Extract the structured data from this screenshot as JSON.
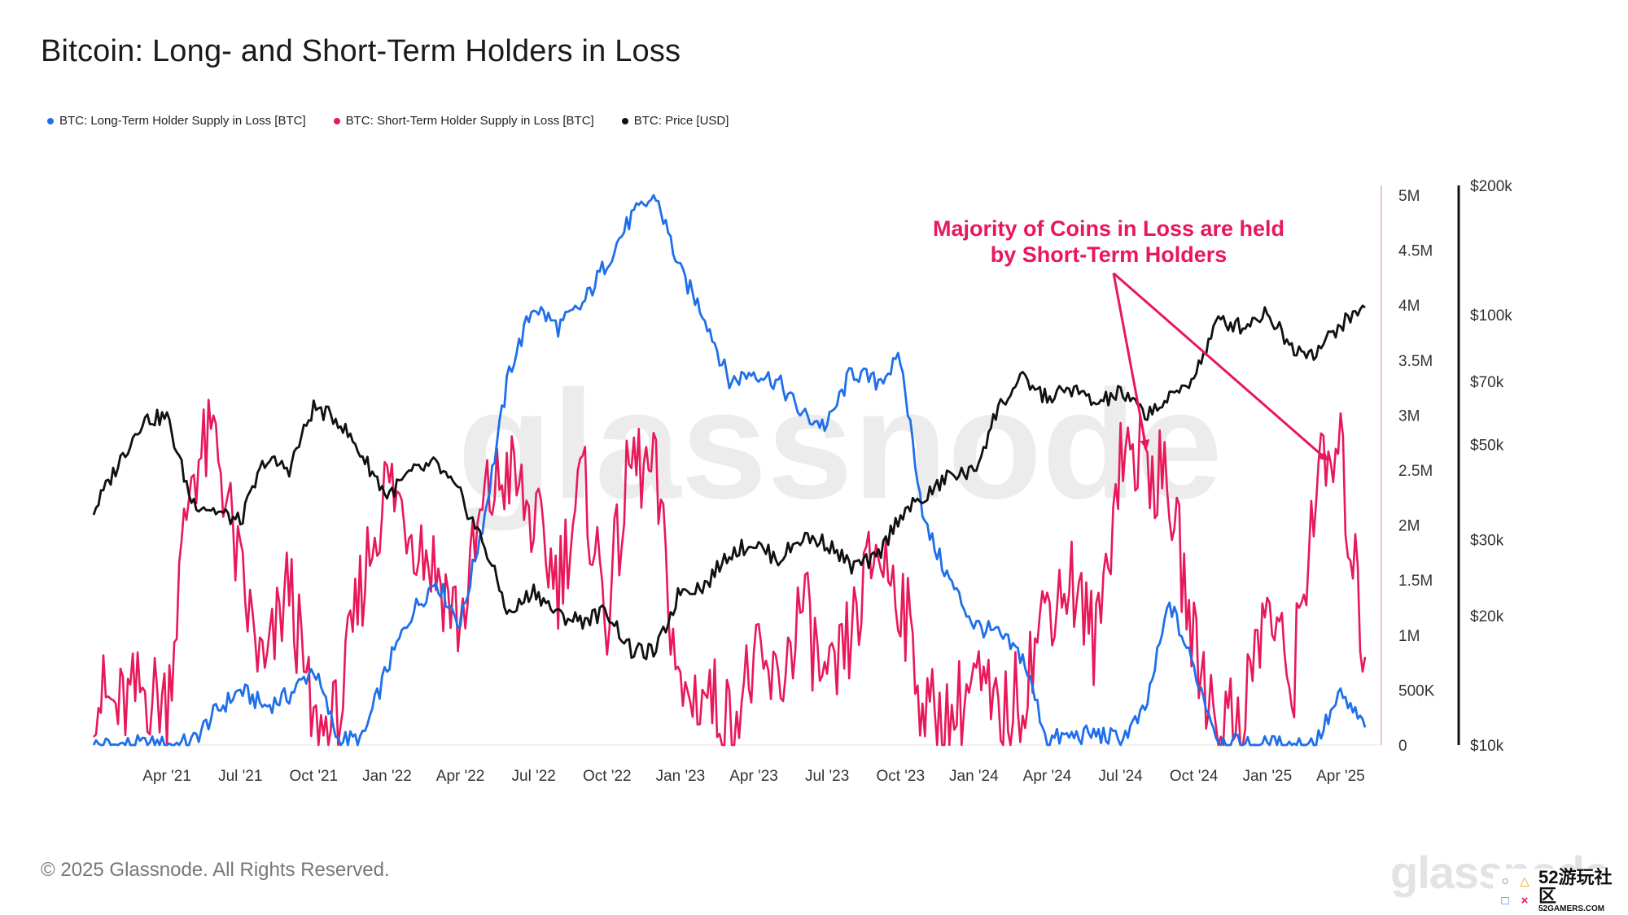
{
  "title": "Bitcoin: Long- and Short-Term Holders in Loss",
  "legend": [
    {
      "label": "BTC: Long-Term Holder Supply in Loss [BTC]",
      "color": "#1f6feb"
    },
    {
      "label": "BTC: Short-Term Holder Supply in Loss [BTC]",
      "color": "#e8185a"
    },
    {
      "label": "BTC: Price [USD]",
      "color": "#111111"
    }
  ],
  "annotation": {
    "line1": "Majority of Coins in Loss are held",
    "line2": "by Short-Term Holders"
  },
  "watermark": "glassnode",
  "copyright": "© 2025 Glassnode. All Rights Reserved.",
  "footer_logo": "glassnode",
  "badge": {
    "main": "52游玩社区",
    "sub": "52GAMERS.COM"
  },
  "chart_data": {
    "type": "line",
    "title": "Bitcoin: Long- and Short-Term Holders in Loss",
    "x_tick_labels": [
      "Apr '21",
      "Jul '21",
      "Oct '21",
      "Jan '22",
      "Apr '22",
      "Jul '22",
      "Oct '22",
      "Jan '23",
      "Apr '23",
      "Jul '23",
      "Oct '23",
      "Jan '24",
      "Apr '24",
      "Jul '24",
      "Oct '24",
      "Jan '25",
      "Apr '25"
    ],
    "x_range": [
      "2021-01",
      "2025-05"
    ],
    "y_left": {
      "tick_labels": [
        "0",
        "500K",
        "1M",
        "1.5M",
        "2M",
        "2.5M",
        "3M",
        "3.5M",
        "4M",
        "4.5M",
        "5M"
      ],
      "min": 0,
      "max": 5000000,
      "unit": "BTC"
    },
    "y_right": {
      "tick_labels": [
        "$10k",
        "$20k",
        "$30k",
        "$50k",
        "$70k",
        "$100k",
        "$200k"
      ],
      "tick_values": [
        10000,
        20000,
        30000,
        50000,
        70000,
        100000,
        200000
      ],
      "scale": "log",
      "unit": "USD"
    },
    "colors": {
      "lth": "#1f6feb",
      "sth": "#e8185a",
      "price": "#111111"
    },
    "series": [
      {
        "name": "BTC: Long-Term Holder Supply in Loss [BTC]",
        "axis": "left",
        "points": [
          [
            "2021-01",
            0
          ],
          [
            "2021-02",
            0
          ],
          [
            "2021-03",
            0
          ],
          [
            "2021-04",
            0
          ],
          [
            "2021-05",
            20000
          ],
          [
            "2021-06",
            300000
          ],
          [
            "2021-07",
            500000
          ],
          [
            "2021-08",
            350000
          ],
          [
            "2021-09",
            450000
          ],
          [
            "2021-10",
            700000
          ],
          [
            "2021-11",
            50000
          ],
          [
            "2021-12",
            50000
          ],
          [
            "2022-01",
            700000
          ],
          [
            "2022-02",
            1200000
          ],
          [
            "2022-03",
            1500000
          ],
          [
            "2022-04",
            1100000
          ],
          [
            "2022-05",
            2100000
          ],
          [
            "2022-06",
            3400000
          ],
          [
            "2022-07",
            4000000
          ],
          [
            "2022-08",
            3800000
          ],
          [
            "2022-09",
            4000000
          ],
          [
            "2022-10",
            4400000
          ],
          [
            "2022-11",
            4800000
          ],
          [
            "2022-12",
            5000000
          ],
          [
            "2023-01",
            4300000
          ],
          [
            "2023-02",
            3900000
          ],
          [
            "2023-03",
            3300000
          ],
          [
            "2023-04",
            3400000
          ],
          [
            "2023-05",
            3300000
          ],
          [
            "2023-06",
            3000000
          ],
          [
            "2023-07",
            2900000
          ],
          [
            "2023-08",
            3400000
          ],
          [
            "2023-09",
            3300000
          ],
          [
            "2023-10",
            3500000
          ],
          [
            "2023-11",
            2000000
          ],
          [
            "2023-12",
            1500000
          ],
          [
            "2024-01",
            1100000
          ],
          [
            "2024-02",
            1000000
          ],
          [
            "2024-03",
            800000
          ],
          [
            "2024-04",
            50000
          ],
          [
            "2024-05",
            80000
          ],
          [
            "2024-06",
            100000
          ],
          [
            "2024-07",
            50000
          ],
          [
            "2024-08",
            300000
          ],
          [
            "2024-09",
            1300000
          ],
          [
            "2024-10",
            700000
          ],
          [
            "2024-11",
            50000
          ],
          [
            "2024-12",
            0
          ],
          [
            "2025-01",
            0
          ],
          [
            "2025-02",
            0
          ],
          [
            "2025-03",
            30000
          ],
          [
            "2025-04",
            450000
          ],
          [
            "2025-05",
            160000
          ]
        ]
      },
      {
        "name": "BTC: Short-Term Holder Supply in Loss [BTC]",
        "axis": "left",
        "points": [
          [
            "2021-01",
            500000
          ],
          [
            "2021-02",
            300000
          ],
          [
            "2021-03",
            500000
          ],
          [
            "2021-04",
            400000
          ],
          [
            "2021-05",
            2500000
          ],
          [
            "2021-06",
            2800000
          ],
          [
            "2021-07",
            1500000
          ],
          [
            "2021-08",
            600000
          ],
          [
            "2021-09",
            1500000
          ],
          [
            "2021-10",
            100000
          ],
          [
            "2021-11",
            200000
          ],
          [
            "2021-12",
            1500000
          ],
          [
            "2022-01",
            2400000
          ],
          [
            "2022-02",
            2000000
          ],
          [
            "2022-03",
            1600000
          ],
          [
            "2022-04",
            1100000
          ],
          [
            "2022-05",
            2200000
          ],
          [
            "2022-06",
            2500000
          ],
          [
            "2022-07",
            2000000
          ],
          [
            "2022-08",
            1500000
          ],
          [
            "2022-09",
            2400000
          ],
          [
            "2022-10",
            1200000
          ],
          [
            "2022-11",
            2600000
          ],
          [
            "2022-12",
            2400000
          ],
          [
            "2023-01",
            400000
          ],
          [
            "2023-02",
            500000
          ],
          [
            "2023-03",
            200000
          ],
          [
            "2023-04",
            700000
          ],
          [
            "2023-05",
            500000
          ],
          [
            "2023-06",
            1300000
          ],
          [
            "2023-07",
            400000
          ],
          [
            "2023-08",
            1000000
          ],
          [
            "2023-09",
            1800000
          ],
          [
            "2023-10",
            1400000
          ],
          [
            "2023-11",
            300000
          ],
          [
            "2023-12",
            200000
          ],
          [
            "2024-01",
            600000
          ],
          [
            "2024-02",
            200000
          ],
          [
            "2024-03",
            500000
          ],
          [
            "2024-04",
            1300000
          ],
          [
            "2024-05",
            1500000
          ],
          [
            "2024-06",
            900000
          ],
          [
            "2024-07",
            2700000
          ],
          [
            "2024-08",
            2600000
          ],
          [
            "2024-09",
            2300000
          ],
          [
            "2024-10",
            900000
          ],
          [
            "2024-11",
            200000
          ],
          [
            "2024-12",
            300000
          ],
          [
            "2025-01",
            1300000
          ],
          [
            "2025-02",
            500000
          ],
          [
            "2025-03",
            2400000
          ],
          [
            "2025-04",
            2600000
          ],
          [
            "2025-05",
            800000
          ]
        ]
      },
      {
        "name": "BTC: Price [USD]",
        "axis": "right",
        "points": [
          [
            "2021-01",
            35000
          ],
          [
            "2021-02",
            45000
          ],
          [
            "2021-03",
            57000
          ],
          [
            "2021-04",
            58000
          ],
          [
            "2021-05",
            37000
          ],
          [
            "2021-06",
            35000
          ],
          [
            "2021-07",
            33000
          ],
          [
            "2021-08",
            46000
          ],
          [
            "2021-09",
            44000
          ],
          [
            "2021-10",
            61000
          ],
          [
            "2021-11",
            57000
          ],
          [
            "2021-12",
            47000
          ],
          [
            "2022-01",
            38000
          ],
          [
            "2022-02",
            43000
          ],
          [
            "2022-03",
            45000
          ],
          [
            "2022-04",
            38000
          ],
          [
            "2022-05",
            29000
          ],
          [
            "2022-06",
            20000
          ],
          [
            "2022-07",
            23000
          ],
          [
            "2022-08",
            20000
          ],
          [
            "2022-09",
            19500
          ],
          [
            "2022-10",
            20500
          ],
          [
            "2022-11",
            16500
          ],
          [
            "2022-12",
            16500
          ],
          [
            "2023-01",
            23000
          ],
          [
            "2023-02",
            23500
          ],
          [
            "2023-03",
            28000
          ],
          [
            "2023-04",
            29500
          ],
          [
            "2023-05",
            27000
          ],
          [
            "2023-06",
            30500
          ],
          [
            "2023-07",
            29500
          ],
          [
            "2023-08",
            26000
          ],
          [
            "2023-09",
            27000
          ],
          [
            "2023-10",
            34500
          ],
          [
            "2023-11",
            37500
          ],
          [
            "2023-12",
            42500
          ],
          [
            "2024-01",
            43000
          ],
          [
            "2024-02",
            61000
          ],
          [
            "2024-03",
            71000
          ],
          [
            "2024-04",
            64000
          ],
          [
            "2024-05",
            67500
          ],
          [
            "2024-06",
            62000
          ],
          [
            "2024-07",
            66000
          ],
          [
            "2024-08",
            59000
          ],
          [
            "2024-09",
            63500
          ],
          [
            "2024-10",
            72000
          ],
          [
            "2024-11",
            97000
          ],
          [
            "2024-12",
            94000
          ],
          [
            "2025-01",
            102000
          ],
          [
            "2025-02",
            84000
          ],
          [
            "2025-03",
            82000
          ],
          [
            "2025-04",
            95000
          ],
          [
            "2025-05",
            104000
          ]
        ]
      }
    ]
  }
}
